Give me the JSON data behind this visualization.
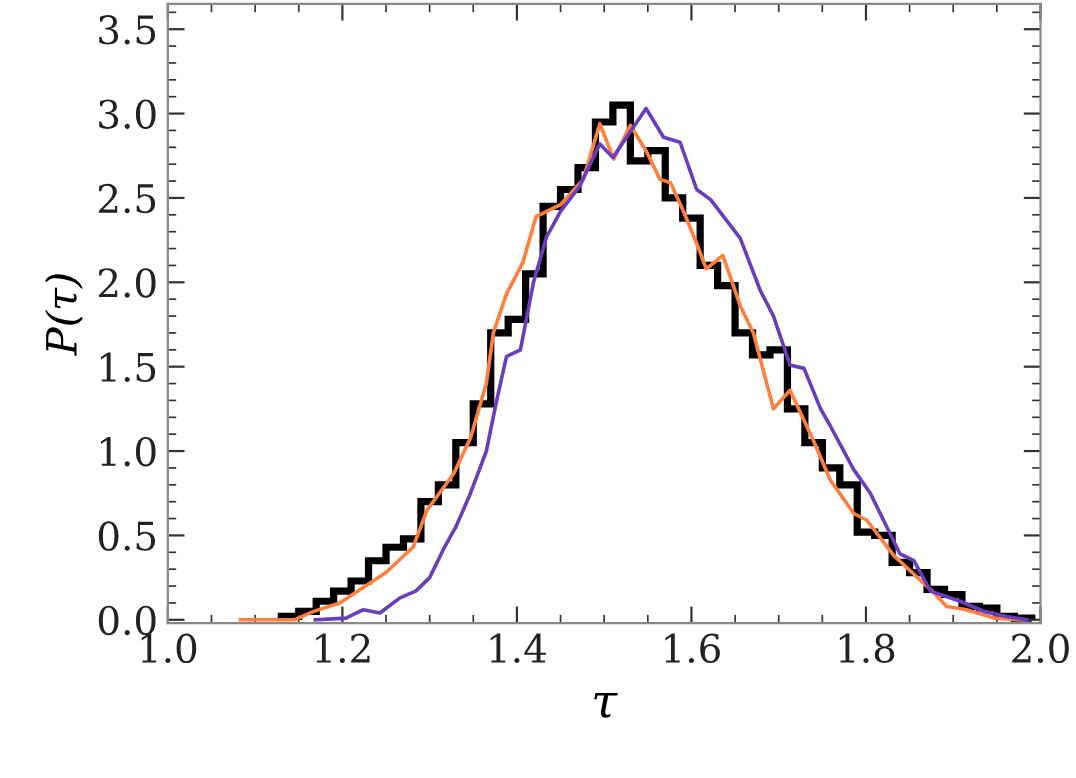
{
  "chart_data": {
    "type": "histogram",
    "xlabel": "τ",
    "ylabel": "P(τ)",
    "bins": [
      1.13,
      1.15,
      1.17,
      1.19,
      1.21,
      1.23,
      1.25,
      1.27,
      1.29,
      1.31,
      1.33,
      1.35,
      1.37,
      1.39,
      1.41,
      1.43,
      1.45,
      1.47,
      1.49,
      1.51,
      1.53,
      1.55,
      1.57,
      1.59,
      1.61,
      1.63,
      1.65,
      1.67,
      1.69,
      1.71,
      1.73,
      1.75,
      1.77,
      1.79,
      1.81,
      1.83,
      1.85,
      1.87,
      1.89,
      1.91,
      1.93,
      1.95,
      1.97,
      1.99
    ],
    "values": [
      0.02,
      0.05,
      0.11,
      0.17,
      0.23,
      0.35,
      0.43,
      0.48,
      0.7,
      0.8,
      1.05,
      1.28,
      1.7,
      1.78,
      2.05,
      2.45,
      2.55,
      2.68,
      2.95,
      3.05,
      2.72,
      2.78,
      2.5,
      2.38,
      2.1,
      1.98,
      1.7,
      1.57,
      1.6,
      1.25,
      1.05,
      0.9,
      0.8,
      0.52,
      0.5,
      0.34,
      0.28,
      0.18,
      0.15,
      0.08,
      0.07,
      0.02,
      0.01
    ],
    "color": "#000000",
    "series": [
      {
        "type": "line",
        "color": "#ff7f3f",
        "x": [
          1.083,
          1.145,
          1.167,
          1.197,
          1.25,
          1.281,
          1.297,
          1.328,
          1.347,
          1.365,
          1.373,
          1.388,
          1.407,
          1.422,
          1.45,
          1.476,
          1.495,
          1.511,
          1.53,
          1.548,
          1.564,
          1.576,
          1.591,
          1.606,
          1.617,
          1.636,
          1.656,
          1.671,
          1.694,
          1.713,
          1.74,
          1.759,
          1.786,
          1.801,
          1.832,
          1.855,
          1.878,
          1.892,
          1.915,
          1.947,
          1.981
        ],
        "values": [
          0,
          0,
          0.05,
          0.1,
          0.28,
          0.43,
          0.65,
          0.87,
          1.08,
          1.4,
          1.7,
          1.93,
          2.12,
          2.39,
          2.46,
          2.61,
          2.94,
          2.73,
          2.93,
          2.78,
          2.61,
          2.59,
          2.42,
          2.23,
          2.08,
          2.16,
          1.86,
          1.7,
          1.25,
          1.36,
          1.06,
          0.83,
          0.63,
          0.59,
          0.38,
          0.27,
          0.16,
          0.08,
          0.06,
          0.01,
          0
        ]
      },
      {
        "type": "line",
        "color": "#6a3dbf",
        "x": [
          1.169,
          1.204,
          1.224,
          1.243,
          1.266,
          1.284,
          1.3,
          1.316,
          1.33,
          1.346,
          1.365,
          1.376,
          1.388,
          1.404,
          1.419,
          1.434,
          1.45,
          1.472,
          1.495,
          1.51,
          1.548,
          1.568,
          1.587,
          1.606,
          1.622,
          1.656,
          1.679,
          1.694,
          1.713,
          1.729,
          1.748,
          1.759,
          1.786,
          1.805,
          1.839,
          1.855,
          1.874,
          1.908,
          1.935,
          1.961,
          1.984
        ],
        "values": [
          0,
          0.01,
          0.06,
          0.04,
          0.13,
          0.17,
          0.25,
          0.42,
          0.55,
          0.74,
          1.0,
          1.28,
          1.56,
          1.6,
          2.0,
          2.27,
          2.42,
          2.57,
          2.82,
          2.74,
          3.03,
          2.86,
          2.83,
          2.55,
          2.49,
          2.26,
          1.95,
          1.8,
          1.51,
          1.49,
          1.25,
          1.15,
          0.89,
          0.75,
          0.39,
          0.35,
          0.17,
          0.11,
          0.05,
          0.02,
          0
        ]
      }
    ],
    "xlim": [
      1.0,
      2.0
    ],
    "xticks": [
      {
        "value": 1.0,
        "label": "1.0"
      },
      1.2,
      1.4,
      1.6,
      1.8,
      {
        "value": 2.0,
        "label": "2.0"
      }
    ],
    "ylim": [
      -0.02,
      3.65
    ],
    "yticks": [
      {
        "value": 0.0,
        "label": "0.0"
      },
      0.5,
      {
        "value": 1.0,
        "label": "1.0"
      },
      1.5,
      {
        "value": 2.0,
        "label": "2.0"
      },
      2.5,
      {
        "value": 3.0,
        "label": "3.0"
      },
      3.5
    ],
    "grid": false,
    "legend": false
  }
}
